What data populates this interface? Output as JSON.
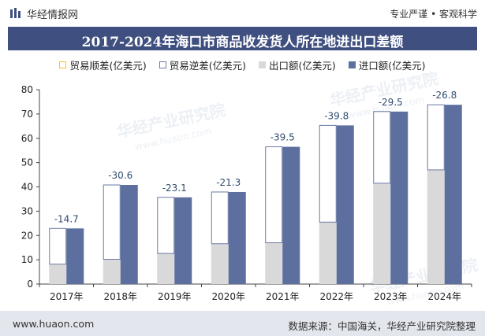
{
  "header": {
    "site_name": "华经情报网",
    "slogan": "专业严谨 • 客观科学"
  },
  "footer": {
    "url": "www.huaon.com",
    "source": "数据来源：中国海关，华经产业研究院整理"
  },
  "watermark_texts": [
    "华经产业研究院",
    "www.huaon.com"
  ],
  "colors": {
    "title_bar": "#3f4f7f",
    "import_bar": "#5c6f9e",
    "export_bar": "#d9d9d9",
    "trade_surplus_border": "#f0c419",
    "trade_deficit_border": "#6a7aa6",
    "label_color": "#2f4c6e"
  },
  "chart_data": {
    "type": "bar",
    "title": "2017-2024年海口市商品收发货人所在地进出口差额",
    "categories": [
      "2017年",
      "2018年",
      "2019年",
      "2020年",
      "2021年",
      "2022年",
      "2023年",
      "2024年"
    ],
    "series": [
      {
        "name": "贸易顺差(亿美元)",
        "values": [
          0,
          0,
          0,
          0,
          0,
          0,
          0,
          0
        ]
      },
      {
        "name": "贸易逆差(亿美元)",
        "values": [
          -14.7,
          -30.6,
          -23.1,
          -21.3,
          -39.5,
          -39.8,
          -29.5,
          -26.8
        ]
      },
      {
        "name": "出口额(亿美元)",
        "values": [
          8.2,
          10.2,
          12.6,
          16.6,
          17.0,
          25.5,
          41.5,
          47.0
        ]
      },
      {
        "name": "进口额(亿美元)",
        "values": [
          22.9,
          40.8,
          35.7,
          37.9,
          56.5,
          65.3,
          71.0,
          73.8
        ]
      }
    ],
    "data_labels": [
      "-14.7",
      "-30.6",
      "-23.1",
      "-21.3",
      "-39.5",
      "-39.8",
      "-29.5",
      "-26.8"
    ],
    "ylim": [
      0,
      80
    ],
    "yticks": [
      0,
      10,
      20,
      30,
      40,
      50,
      60,
      70,
      80
    ],
    "xlabel": "",
    "ylabel": "",
    "grid": false,
    "legend_position": "top-center"
  }
}
